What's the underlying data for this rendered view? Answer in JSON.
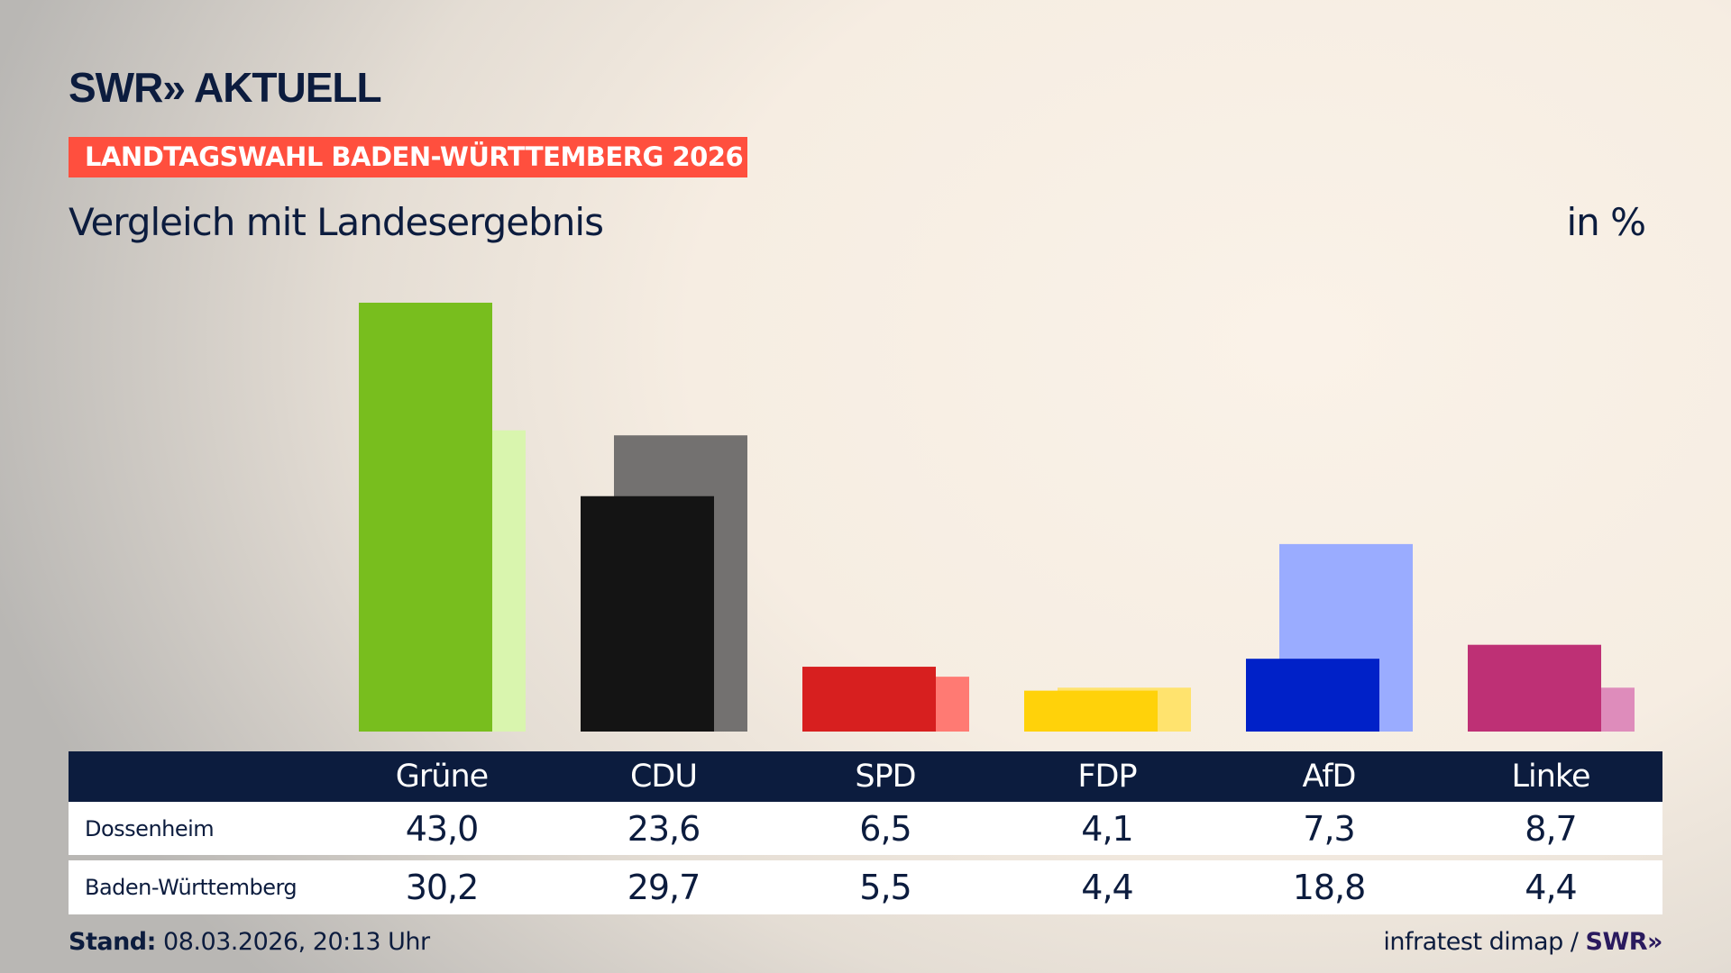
{
  "header": {
    "logo": "SWR» AKTUELL",
    "banner": "LANDTAGSWAHL BADEN-WÜRTTEMBERG 2026",
    "subtitle": "Vergleich mit Landesergebnis",
    "unit": "in %"
  },
  "chart_data": {
    "type": "bar",
    "categories": [
      "Grüne",
      "CDU",
      "SPD",
      "FDP",
      "AfD",
      "Linke"
    ],
    "series": [
      {
        "name": "Dossenheim",
        "values": [
          43.0,
          23.6,
          6.5,
          4.1,
          7.3,
          8.7
        ],
        "colors": [
          "#78be1e",
          "#141414",
          "#d71f1f",
          "#ffd20a",
          "#0021c8",
          "#be3075"
        ]
      },
      {
        "name": "Baden-Württemberg",
        "values": [
          30.2,
          29.7,
          5.5,
          4.4,
          18.8,
          4.4
        ],
        "colors": [
          "#d9f5ae",
          "#737170",
          "#ff7a73",
          "#ffe36e",
          "#9aacff",
          "#de8cbb"
        ]
      }
    ],
    "ylim": [
      0,
      45
    ]
  },
  "table": {
    "headers": [
      "Grüne",
      "CDU",
      "SPD",
      "FDP",
      "AfD",
      "Linke"
    ],
    "rows": [
      {
        "label": "Dossenheim",
        "values": [
          "43,0",
          "23,6",
          "6,5",
          "4,1",
          "7,3",
          "8,7"
        ]
      },
      {
        "label": "Baden-Württemberg",
        "values": [
          "30,2",
          "29,7",
          "5,5",
          "4,4",
          "18,8",
          "4,4"
        ]
      }
    ]
  },
  "footer": {
    "stand_label": "Stand:",
    "stand_value": "08.03.2026, 20:13 Uhr",
    "source": "infratest dimap /",
    "source_logo": "SWR»"
  },
  "colors": {
    "navy": "#0c1c3e",
    "banner": "#ff4f3e"
  }
}
